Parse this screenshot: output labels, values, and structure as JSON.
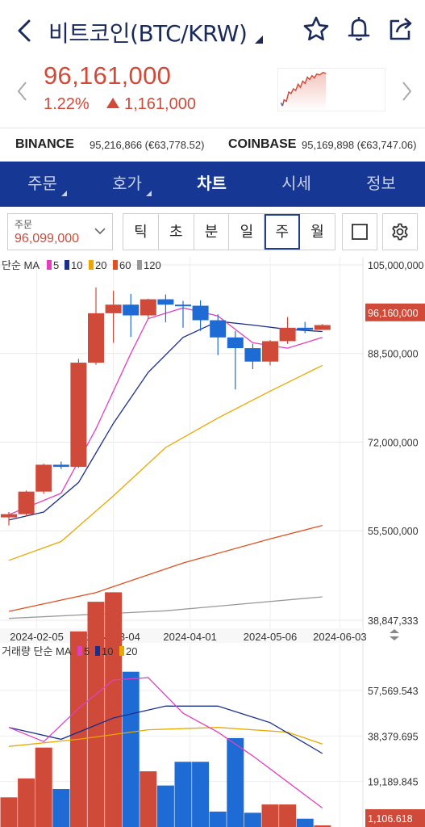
{
  "header": {
    "title": "비트코인(BTC/KRW)",
    "icons": [
      "back-icon",
      "star-icon",
      "bell-icon",
      "share-icon"
    ]
  },
  "price": {
    "current": "96,161,000",
    "change_pct": "1.22%",
    "change_amount": "1,161,000",
    "color": "#d04a3a"
  },
  "exchanges": [
    {
      "name": "BINANCE",
      "value": "95,216,866 (€63,778.52)"
    },
    {
      "name": "COINBASE",
      "value": "95,169,898 (€63,747.06)"
    }
  ],
  "tabs": [
    {
      "label": "주문",
      "has_caret": true
    },
    {
      "label": "호가",
      "has_caret": true
    },
    {
      "label": "차트",
      "active": true
    },
    {
      "label": "시세"
    },
    {
      "label": "정보"
    }
  ],
  "order": {
    "label": "주문",
    "value": "96,099,000"
  },
  "periods": [
    "틱",
    "초",
    "분",
    "일",
    "주",
    "월"
  ],
  "active_period": "주",
  "chart_data": {
    "type": "candlestick",
    "price_legend": {
      "prefix": "단순 MA",
      "periods": [
        "5",
        "10",
        "20",
        "60",
        "120"
      ],
      "colors": [
        "#e040c0",
        "#1a2f8c",
        "#e8a800",
        "#e05020",
        "#999999"
      ]
    },
    "y_ticks": [
      "105,000,000",
      "88,500,000",
      "72,000,000",
      "55,500,000",
      "38,847,333"
    ],
    "current_price_label": "96,160,000",
    "x_ticks": [
      "2024-02-05",
      "2024-03-04",
      "2024-04-01",
      "2024-05-06",
      "2024-06-03"
    ],
    "up_color": "#d04a3a",
    "down_color": "#1e6bd6",
    "candles": [
      {
        "o": 58.0,
        "h": 59.0,
        "l": 56.5,
        "c": 58.6
      },
      {
        "o": 58.6,
        "h": 63.0,
        "l": 58.2,
        "c": 62.8
      },
      {
        "o": 62.8,
        "h": 68.0,
        "l": 62.4,
        "c": 67.8
      },
      {
        "o": 67.8,
        "h": 68.4,
        "l": 67.0,
        "c": 67.4
      },
      {
        "o": 67.4,
        "h": 87.5,
        "l": 67.2,
        "c": 86.8
      },
      {
        "o": 86.8,
        "h": 100.8,
        "l": 86.4,
        "c": 96.0
      },
      {
        "o": 96.0,
        "h": 100.2,
        "l": 90.5,
        "c": 97.6
      },
      {
        "o": 97.6,
        "h": 99.6,
        "l": 91.6,
        "c": 95.6
      },
      {
        "o": 95.6,
        "h": 98.7,
        "l": 94.9,
        "c": 98.6
      },
      {
        "o": 98.6,
        "h": 99.5,
        "l": 94.3,
        "c": 97.6
      },
      {
        "o": 97.6,
        "h": 98.3,
        "l": 93.3,
        "c": 97.4
      },
      {
        "o": 97.4,
        "h": 98.4,
        "l": 92.7,
        "c": 94.7
      },
      {
        "o": 94.7,
        "h": 95.8,
        "l": 88.2,
        "c": 91.5
      },
      {
        "o": 91.5,
        "h": 92.7,
        "l": 81.8,
        "c": 89.5
      },
      {
        "o": 89.5,
        "h": 90.3,
        "l": 85.6,
        "c": 87.0
      },
      {
        "o": 87.0,
        "h": 91.0,
        "l": 86.3,
        "c": 90.8
      },
      {
        "o": 90.8,
        "h": 95.3,
        "l": 90.3,
        "c": 93.3
      },
      {
        "o": 93.3,
        "h": 94.4,
        "l": 92.3,
        "c": 92.9
      },
      {
        "o": 92.9,
        "h": 94.0,
        "l": 92.9,
        "c": 93.8
      }
    ],
    "ma_lines": {
      "ma5": [
        [
          0,
          58.5
        ],
        [
          3,
          62.5
        ],
        [
          5,
          74.5
        ],
        [
          7,
          88.5
        ],
        [
          8,
          95
        ],
        [
          10,
          97
        ],
        [
          12,
          95.5
        ],
        [
          14,
          90.5
        ],
        [
          16,
          89.5
        ],
        [
          18,
          91.5
        ]
      ],
      "ma10": [
        [
          0,
          57.5
        ],
        [
          2,
          59
        ],
        [
          4,
          64.5
        ],
        [
          6,
          75.5
        ],
        [
          8,
          85
        ],
        [
          10,
          91.5
        ],
        [
          12,
          94.5
        ],
        [
          14,
          93.8
        ],
        [
          16,
          93
        ],
        [
          18,
          92.6
        ]
      ],
      "ma20": [
        [
          0,
          50
        ],
        [
          3,
          53.5
        ],
        [
          6,
          62
        ],
        [
          9,
          71
        ],
        [
          12,
          76.5
        ],
        [
          15,
          81.5
        ],
        [
          18,
          86.3
        ]
      ],
      "ma60": [
        [
          0,
          40.5
        ],
        [
          5,
          44
        ],
        [
          10,
          49.5
        ],
        [
          15,
          54
        ],
        [
          18,
          56.5
        ]
      ],
      "ma120": [
        [
          0,
          39.2
        ],
        [
          9,
          40.6
        ],
        [
          18,
          43.2
        ]
      ]
    },
    "volume_legend": {
      "prefix": "거래량 단순 MA",
      "periods": [
        "5",
        "10",
        "20"
      ],
      "colors": [
        "#e040c0",
        "#1a2f8c",
        "#e8a800"
      ]
    },
    "volume_y_ticks": [
      "57,569.543",
      "38,379.695",
      "19,189.845"
    ],
    "volume_current_label": "1,106.618",
    "volumes": [
      {
        "v": 12.5,
        "up": true
      },
      {
        "v": 20.5,
        "up": true
      },
      {
        "v": 33.5,
        "up": true
      },
      {
        "v": 16.0,
        "up": false
      },
      {
        "v": 82.5,
        "up": true
      },
      {
        "v": 95.0,
        "up": true
      },
      {
        "v": 99.0,
        "up": true
      },
      {
        "v": 65.5,
        "up": false
      },
      {
        "v": 23.5,
        "up": true
      },
      {
        "v": 17.5,
        "up": false
      },
      {
        "v": 27.5,
        "up": false
      },
      {
        "v": 27.5,
        "up": false
      },
      {
        "v": 6.5,
        "up": false
      },
      {
        "v": 37.5,
        "up": false
      },
      {
        "v": 6.0,
        "up": false
      },
      {
        "v": 9.5,
        "up": true
      },
      {
        "v": 9.5,
        "up": true
      },
      {
        "v": 3.5,
        "up": false
      },
      {
        "v": -6,
        "up": true
      }
    ],
    "volume_ma": {
      "ma5": [
        [
          0,
          42
        ],
        [
          2,
          36
        ],
        [
          4,
          50
        ],
        [
          6,
          62
        ],
        [
          8,
          63
        ],
        [
          10,
          48
        ],
        [
          12,
          40
        ],
        [
          14,
          30
        ],
        [
          16,
          19
        ],
        [
          18,
          8
        ]
      ],
      "ma10": [
        [
          0,
          42
        ],
        [
          3,
          37
        ],
        [
          6,
          46
        ],
        [
          9,
          51
        ],
        [
          12,
          51
        ],
        [
          15,
          44
        ],
        [
          18,
          31
        ]
      ],
      "ma20": [
        [
          0,
          34
        ],
        [
          4,
          37
        ],
        [
          8,
          41
        ],
        [
          12,
          42
        ],
        [
          16,
          40
        ],
        [
          18,
          35
        ]
      ]
    }
  }
}
